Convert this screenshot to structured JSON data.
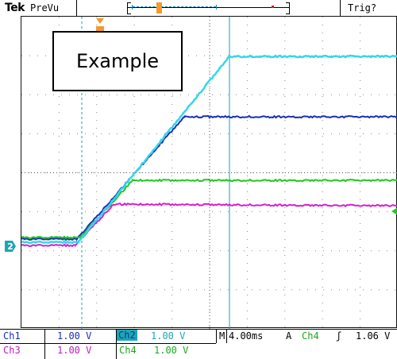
{
  "header": {
    "brand": "Tek",
    "mode": "PreVu",
    "trigger_status": "Trig?"
  },
  "annotation": {
    "text": "Example"
  },
  "ground_marker": {
    "label": "2"
  },
  "readout": {
    "ch1_label": "Ch1",
    "ch1_scale": "1.00 V",
    "ch2_label": "Ch2",
    "ch2_scale": "1.00 V",
    "ch3_label": "Ch3",
    "ch3_scale": "1.00 V",
    "ch4_label": "Ch4",
    "ch4_scale": "1.00 V",
    "timebase_prefix": "M",
    "timebase": "4.00ms",
    "trigger_mode": "A",
    "trigger_source": "Ch4",
    "trigger_slope": "ʃ",
    "trigger_level": "1.06 V"
  },
  "colors": {
    "ch1": "#1a2fb5",
    "ch2": "#35d6ec",
    "ch3": "#d41fd4",
    "ch4": "#22c81e",
    "cursor": "#1b9fb4",
    "marker": "#f29a2e"
  }
}
